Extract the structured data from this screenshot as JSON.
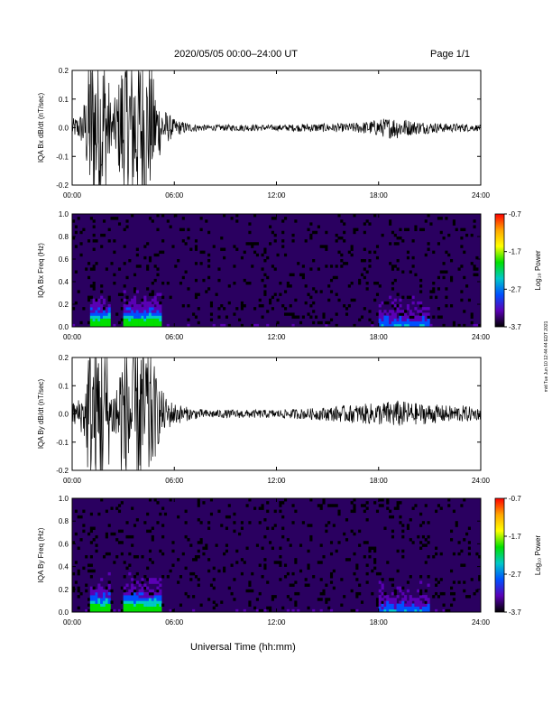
{
  "header": {
    "title": "2020/05/05  00:00–24:00 UT",
    "page": "Page 1/1"
  },
  "x_axis_label": "Universal Time (hh:mm)",
  "side_note": "mid Tue Jun 10 12:44:44 EDT 2021",
  "colorbar": {
    "label": "Log₁₀ Power",
    "ticks": [
      "-0.7",
      "-1.7",
      "-2.7",
      "-3.7"
    ],
    "colors": [
      "#ff0000",
      "#ffa500",
      "#ffff00",
      "#00e000",
      "#00c8c8",
      "#0050ff",
      "#5a00b4",
      "#000000"
    ]
  },
  "chart_data": [
    {
      "type": "line",
      "id": "bx-dbdt",
      "ylabel": "IQA Bx dB/dt (nT/sec)",
      "xlim": [
        "00:00",
        "24:00"
      ],
      "ylim": [
        -0.2,
        0.2
      ],
      "x_ticks": [
        "00:00",
        "06:00",
        "12:00",
        "18:00",
        "24:00"
      ],
      "y_ticks": [
        "0.2",
        "0.1",
        "0.0",
        "-0.1",
        "-0.2"
      ],
      "envelope": {
        "hours": [
          0,
          0.5,
          0.8,
          1.0,
          1.5,
          2.0,
          2.3,
          2.7,
          3.0,
          3.5,
          4.0,
          4.5,
          5.0,
          5.5,
          6.0,
          7,
          8,
          10,
          12,
          14,
          16,
          17,
          18,
          19,
          20,
          21,
          22,
          23,
          24
        ],
        "amplitude": [
          0.03,
          0.05,
          0.12,
          0.3,
          0.3,
          0.3,
          0.06,
          0.15,
          0.3,
          0.3,
          0.3,
          0.25,
          0.12,
          0.06,
          0.03,
          0.015,
          0.01,
          0.012,
          0.01,
          0.015,
          0.015,
          0.02,
          0.03,
          0.04,
          0.025,
          0.02,
          0.015,
          0.015,
          0.01
        ]
      },
      "color": "#000000"
    },
    {
      "type": "heatmap",
      "id": "bx-spectrogram",
      "ylabel": "IQA Bx Freq (Hz)",
      "xlim": [
        "00:00",
        "24:00"
      ],
      "ylim": [
        0.0,
        1.0
      ],
      "x_ticks": [
        "00:00",
        "06:00",
        "12:00",
        "18:00",
        "24:00"
      ],
      "y_ticks": [
        "1.0",
        "0.8",
        "0.6",
        "0.4",
        "0.2",
        "0.0"
      ],
      "zlim": [
        -3.7,
        -0.7
      ],
      "zlabel": "Log₁₀ Power"
    },
    {
      "type": "line",
      "id": "by-dbdt",
      "ylabel": "IQA By dB/dt (nT/sec)",
      "xlim": [
        "00:00",
        "24:00"
      ],
      "ylim": [
        -0.2,
        0.2
      ],
      "x_ticks": [
        "00:00",
        "06:00",
        "12:00",
        "18:00",
        "24:00"
      ],
      "y_ticks": [
        "0.2",
        "0.1",
        "0.0",
        "-0.1",
        "-0.2"
      ],
      "envelope": {
        "hours": [
          0,
          0.5,
          0.8,
          1.0,
          1.5,
          2.0,
          2.3,
          2.7,
          3.0,
          3.5,
          4.0,
          4.5,
          5.0,
          5.5,
          6.0,
          7,
          8,
          10,
          12,
          14,
          16,
          17,
          18,
          19,
          20,
          21,
          22,
          23,
          24
        ],
        "amplitude": [
          0.04,
          0.06,
          0.12,
          0.3,
          0.3,
          0.3,
          0.08,
          0.15,
          0.3,
          0.3,
          0.3,
          0.28,
          0.12,
          0.06,
          0.04,
          0.02,
          0.015,
          0.015,
          0.015,
          0.02,
          0.03,
          0.035,
          0.04,
          0.05,
          0.04,
          0.035,
          0.03,
          0.03,
          0.02
        ]
      },
      "color": "#000000"
    },
    {
      "type": "heatmap",
      "id": "by-spectrogram",
      "ylabel": "IQA By Freq (Hz)",
      "xlim": [
        "00:00",
        "24:00"
      ],
      "ylim": [
        0.0,
        1.0
      ],
      "x_ticks": [
        "00:00",
        "06:00",
        "12:00",
        "18:00",
        "24:00"
      ],
      "y_ticks": [
        "1.0",
        "0.8",
        "0.6",
        "0.4",
        "0.2",
        "0.0"
      ],
      "zlim": [
        -3.7,
        -0.7
      ],
      "zlabel": "Log₁₀ Power"
    }
  ]
}
